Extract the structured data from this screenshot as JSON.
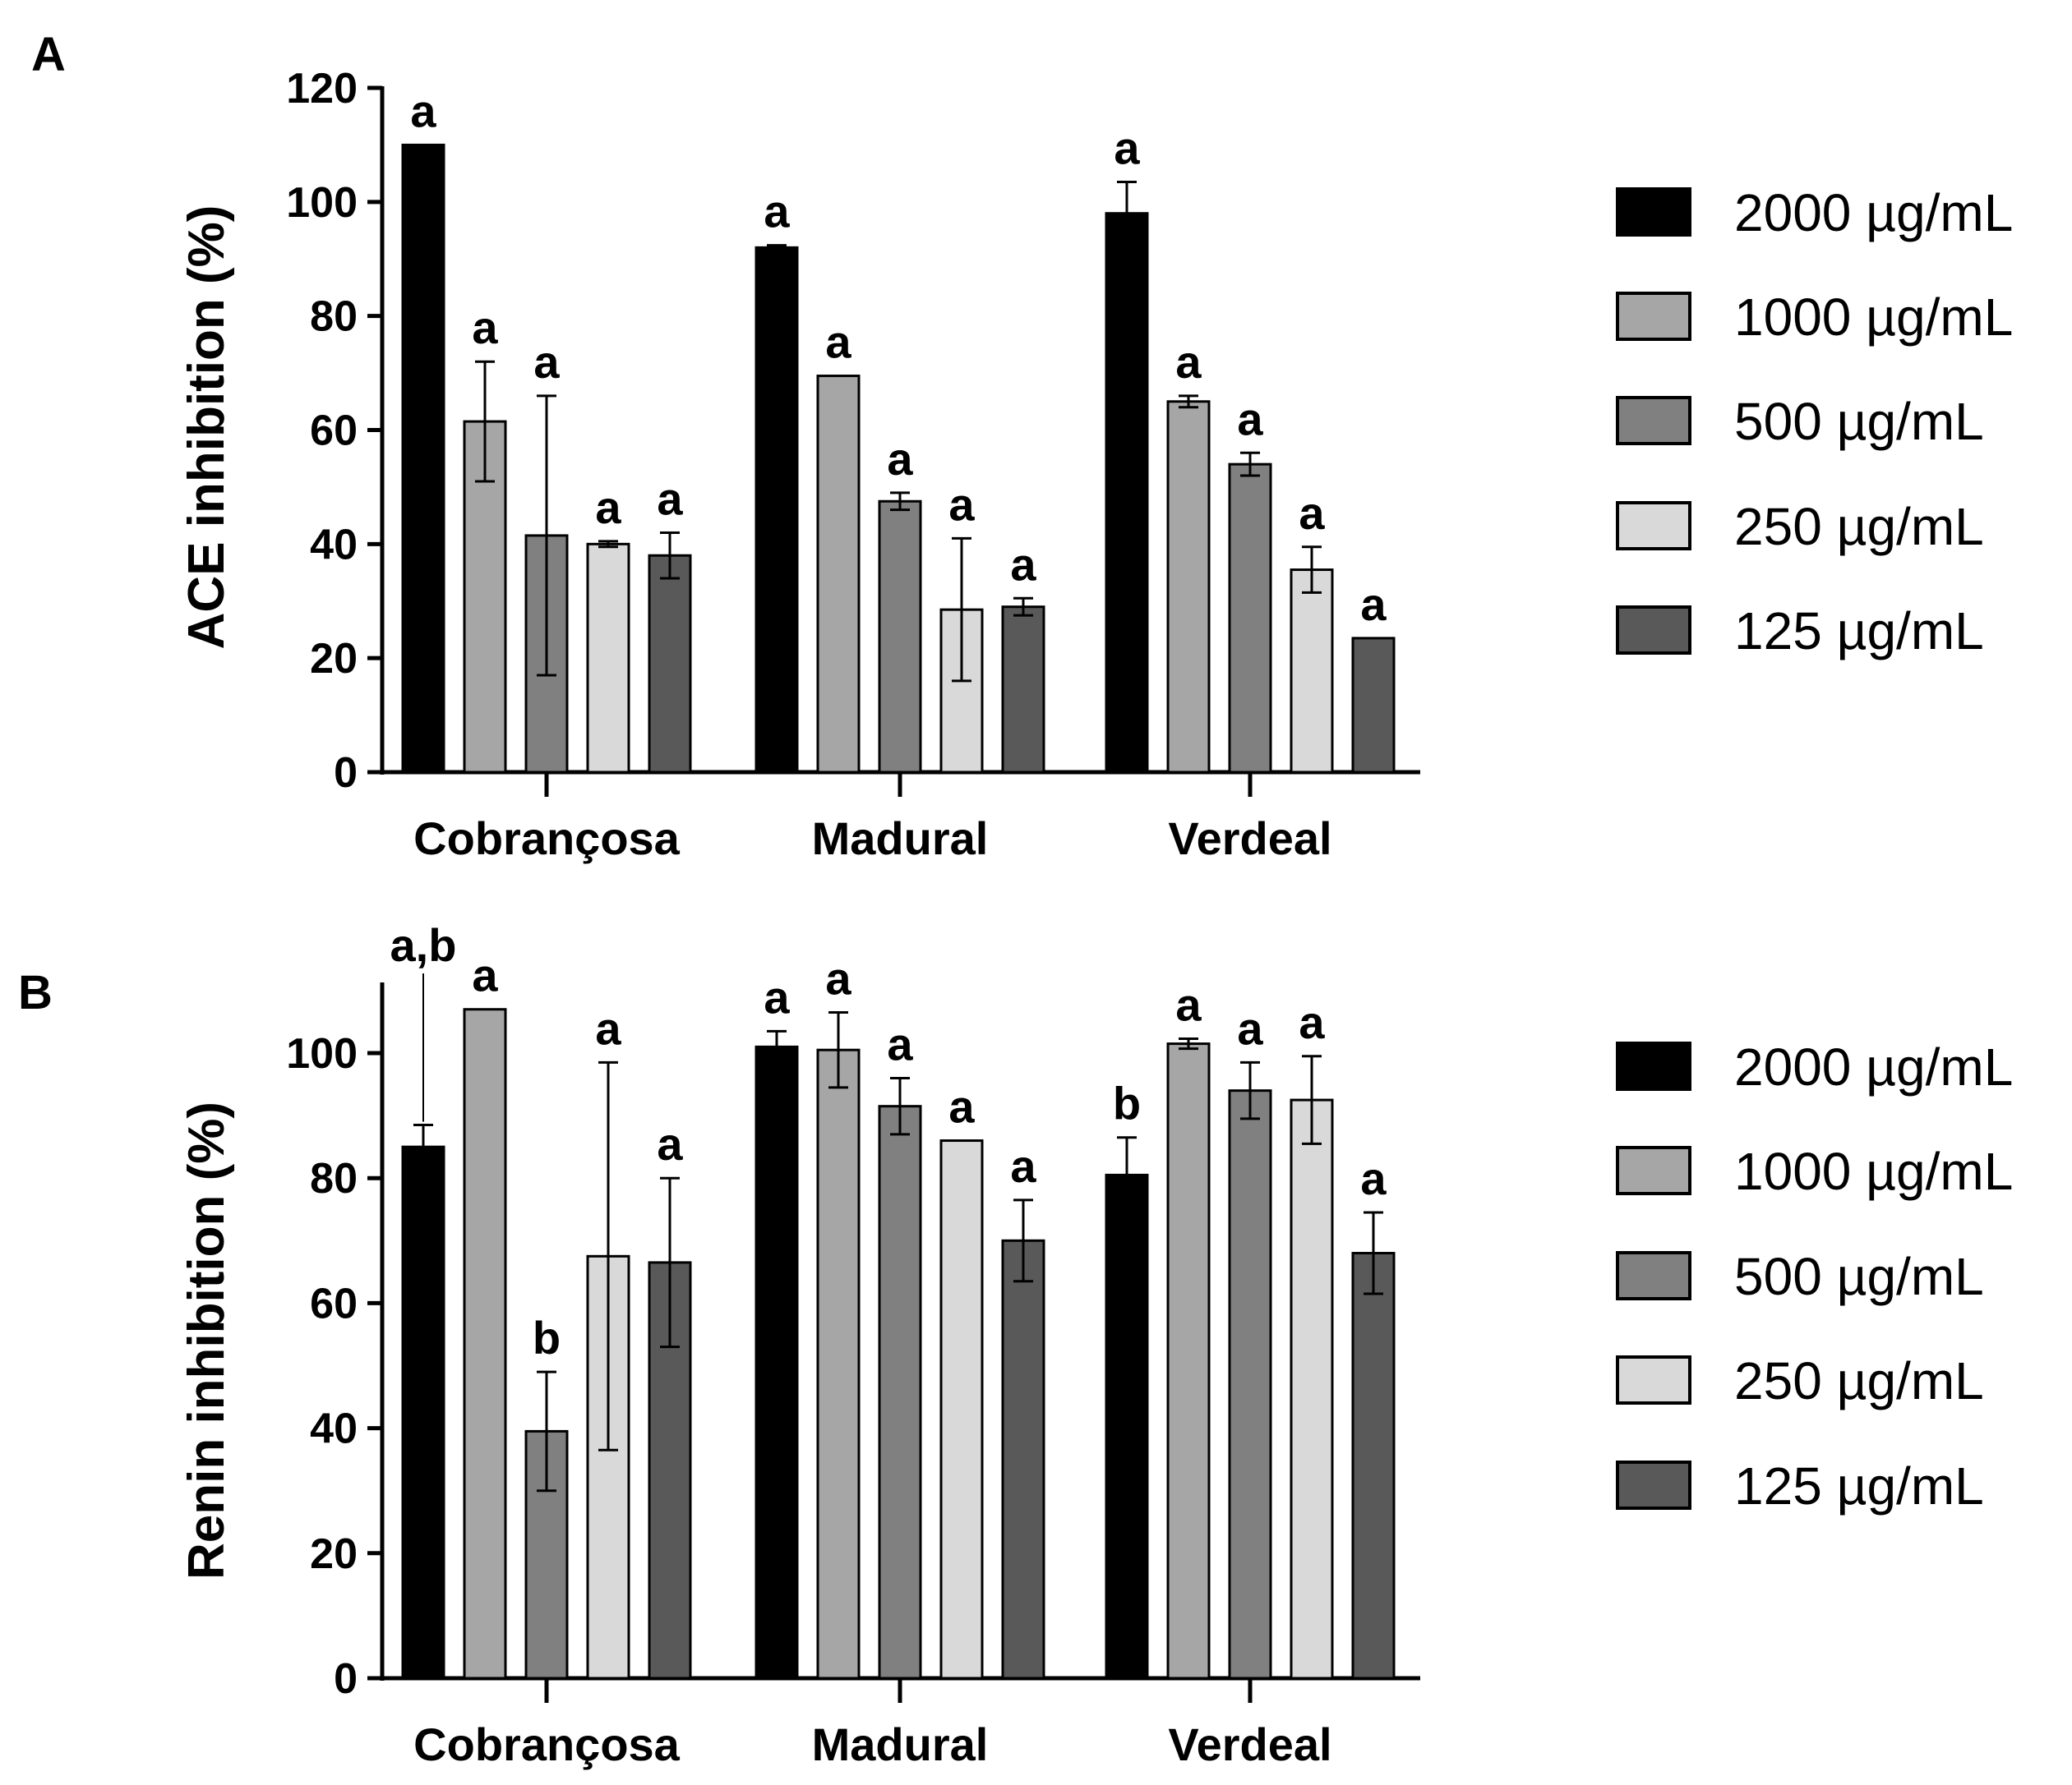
{
  "chart_data": [
    {
      "type": "bar",
      "panel": "A",
      "title": "",
      "xlabel": "",
      "ylabel": "ACE inhibition (%)",
      "ylim": [
        0,
        120
      ],
      "yticks": [
        0,
        20,
        40,
        60,
        80,
        100,
        120
      ],
      "categories": [
        "Cobrançosa",
        "Madural",
        "Verdeal"
      ],
      "series": [
        {
          "name": "2000 µg/mL",
          "color": "#000000",
          "values": [
            110,
            92,
            98
          ],
          "errors": [
            0,
            0.4,
            5.5
          ],
          "labels": [
            "a",
            "a",
            "a"
          ]
        },
        {
          "name": "1000 µg/mL",
          "color": "#a6a6a6",
          "values": [
            61.5,
            69.5,
            65
          ],
          "errors": [
            10.5,
            0,
            1
          ],
          "labels": [
            "a",
            "a",
            "a"
          ]
        },
        {
          "name": "500 µg/mL",
          "color": "#808080",
          "values": [
            41.5,
            47.5,
            54
          ],
          "errors": [
            24.5,
            1.5,
            2
          ],
          "labels": [
            "a",
            "a",
            "a"
          ]
        },
        {
          "name": "250 µg/mL",
          "color": "#d9d9d9",
          "values": [
            40,
            28.5,
            35.5
          ],
          "errors": [
            0.5,
            12.5,
            4
          ],
          "labels": [
            "a",
            "a",
            "a"
          ]
        },
        {
          "name": "125 µg/mL",
          "color": "#595959",
          "values": [
            38,
            29,
            23.5
          ],
          "errors": [
            4,
            1.5,
            0
          ],
          "labels": [
            "a",
            "a",
            "a"
          ]
        }
      ],
      "legend_position": "right"
    },
    {
      "type": "bar",
      "panel": "B",
      "title": "",
      "xlabel": "",
      "ylabel": "Renin inhibition (%)",
      "ylim": [
        0,
        110
      ],
      "yticks": [
        0,
        20,
        40,
        60,
        80,
        100
      ],
      "categories": [
        "Cobrançosa",
        "Madural",
        "Verdeal"
      ],
      "series": [
        {
          "name": "2000 µg/mL",
          "color": "#000000",
          "values": [
            85,
            101,
            80.5
          ],
          "errors": [
            3.5,
            2.5,
            6
          ],
          "labels": [
            "a,b",
            "a",
            "b"
          ]
        },
        {
          "name": "1000 µg/mL",
          "color": "#a6a6a6",
          "values": [
            107,
            100.5,
            101.5
          ],
          "errors": [
            0,
            6,
            0.8
          ],
          "labels": [
            "a",
            "a",
            "a"
          ]
        },
        {
          "name": "500 µg/mL",
          "color": "#808080",
          "values": [
            39.5,
            91.5,
            94
          ],
          "errors": [
            9.5,
            4.5,
            4.5
          ],
          "labels": [
            "b",
            "a",
            "a"
          ]
        },
        {
          "name": "250 µg/mL",
          "color": "#d9d9d9",
          "values": [
            67.5,
            86,
            92.5
          ],
          "errors": [
            31,
            0,
            7
          ],
          "labels": [
            "a",
            "a",
            "a"
          ]
        },
        {
          "name": "125 µg/mL",
          "color": "#595959",
          "values": [
            66.5,
            70,
            68
          ],
          "errors": [
            13.5,
            6.5,
            6.5
          ],
          "labels": [
            "a",
            "a",
            "a"
          ]
        }
      ],
      "legend_position": "right"
    }
  ]
}
